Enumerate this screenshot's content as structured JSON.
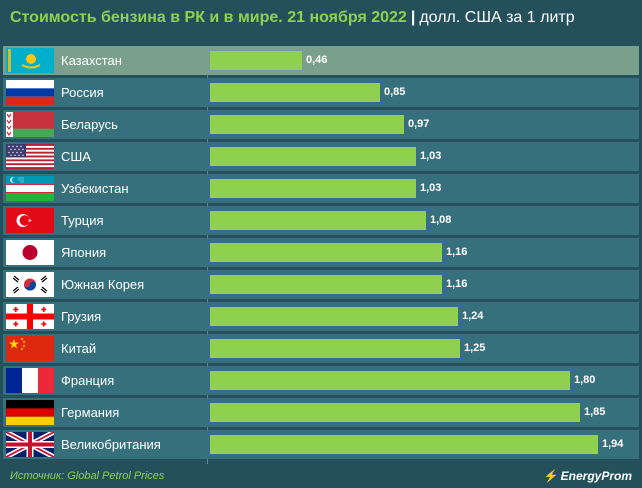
{
  "title": {
    "main": "Стоимость бензина в РК и в мире. 21 ноября 2022",
    "separator": "|",
    "unit": "долл. США за 1 литр"
  },
  "colors": {
    "background": "#24505c",
    "row": "#37707d",
    "highlight_row": "#7a9f8a",
    "bar": "#8fd14f",
    "title_accent": "#8fd14f"
  },
  "chart_data": {
    "type": "bar",
    "orientation": "horizontal",
    "title": "Стоимость бензина в РК и в мире. 21 ноября 2022",
    "subtitle": "долл. США за 1 литр",
    "xlim": [
      0,
      2.0
    ],
    "grid": false,
    "legend": "none",
    "highlight_category": "Казахстан",
    "categories": [
      "Казахстан",
      "Россия",
      "Беларусь",
      "США",
      "Узбекистан",
      "Турция",
      "Япония",
      "Южная Корея",
      "Грузия",
      "Китай",
      "Франция",
      "Германия",
      "Великобритания"
    ],
    "values": [
      0.46,
      0.85,
      0.97,
      1.03,
      1.03,
      1.08,
      1.16,
      1.16,
      1.24,
      1.25,
      1.8,
      1.85,
      1.94
    ],
    "value_labels": [
      "0,46",
      "0,85",
      "0,97",
      "1,03",
      "1,03",
      "1,08",
      "1,16",
      "1,16",
      "1,24",
      "1,25",
      "1,80",
      "1,85",
      "1,94"
    ],
    "flags": [
      "kazakhstan-flag",
      "russia-flag",
      "belarus-flag",
      "usa-flag",
      "uzbekistan-flag",
      "turkey-flag",
      "japan-flag",
      "south-korea-flag",
      "georgia-flag",
      "china-flag",
      "france-flag",
      "germany-flag",
      "uk-flag"
    ]
  },
  "footer": {
    "source": "Источник: Global Petrol Prices",
    "logo": "EnergyProm"
  }
}
